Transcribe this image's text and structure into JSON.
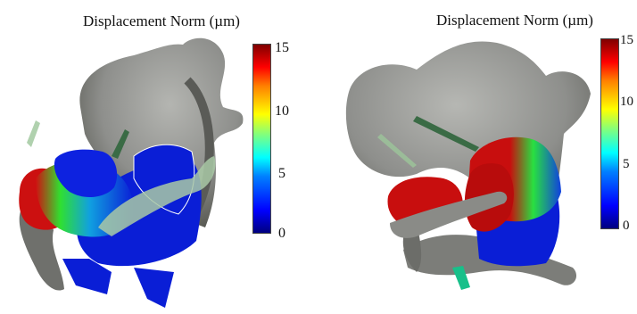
{
  "panels": [
    {
      "title": "Displacement Norm (µm)",
      "colorbar_ticks": [
        "15",
        "10",
        "5",
        "0"
      ]
    },
    {
      "title": "Displacement Norm (µm)",
      "colorbar_ticks": [
        "15",
        "10",
        "5",
        "0"
      ]
    }
  ],
  "colors": {
    "bone": "#8e8f8c",
    "bone_shadow": "#5e5f5c",
    "low": "#0a1ed6",
    "mid": "#22e63a",
    "high": "#c80e0e"
  }
}
